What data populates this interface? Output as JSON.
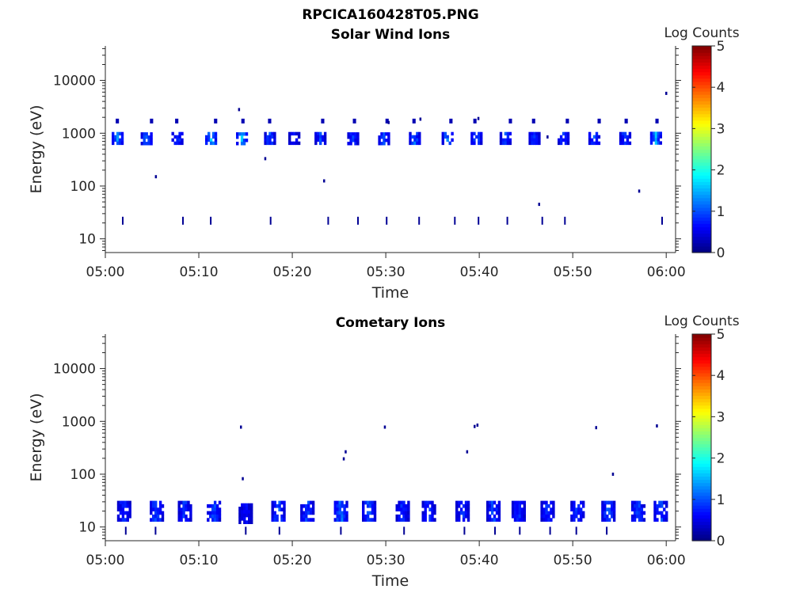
{
  "figure": {
    "title": "RPCICA160428T05.PNG"
  },
  "chart_data": [
    {
      "type": "heatmap",
      "title": "Solar Wind Ions",
      "xlabel": "Time",
      "ylabel": "Energy (eV)",
      "yscale": "log",
      "ylim": [
        5.5,
        45000
      ],
      "xlim": [
        "05:00",
        "06:01"
      ],
      "xticks": [
        "05:00",
        "05:10",
        "05:20",
        "05:30",
        "05:40",
        "05:50",
        "06:00"
      ],
      "yticks": [
        "10",
        "100",
        "1000",
        "10000"
      ],
      "colorbar": {
        "label": "Log Counts",
        "min": 0,
        "max": 5,
        "ticks": [
          "0",
          "1",
          "2",
          "3",
          "4",
          "5"
        ],
        "colormap": "jet"
      },
      "bursts": [
        {
          "t": 1.3,
          "e": 800,
          "z": 1.3
        },
        {
          "t": 4.4,
          "e": 790,
          "z": 1.1
        },
        {
          "t": 7.7,
          "e": 800,
          "z": 0.9
        },
        {
          "t": 11.3,
          "e": 800,
          "z": 1.4
        },
        {
          "t": 14.6,
          "e": 790,
          "z": 1.4
        },
        {
          "t": 17.6,
          "e": 800,
          "z": 0.9
        },
        {
          "t": 20.2,
          "e": 800,
          "z": 0.6
        },
        {
          "t": 23.0,
          "e": 800,
          "z": 0.8
        },
        {
          "t": 26.5,
          "e": 790,
          "z": 0.8
        },
        {
          "t": 29.8,
          "e": 790,
          "z": 0.9
        },
        {
          "t": 33.1,
          "e": 800,
          "z": 1.0
        },
        {
          "t": 36.6,
          "e": 800,
          "z": 1.1
        },
        {
          "t": 39.7,
          "e": 800,
          "z": 1.0
        },
        {
          "t": 42.8,
          "e": 800,
          "z": 0.9
        },
        {
          "t": 45.9,
          "e": 800,
          "z": 0.8
        },
        {
          "t": 49.0,
          "e": 800,
          "z": 0.8
        },
        {
          "t": 52.3,
          "e": 800,
          "z": 1.0
        },
        {
          "t": 55.6,
          "e": 800,
          "z": 0.9
        },
        {
          "t": 58.9,
          "e": 810,
          "z": 1.3
        }
      ]
    },
    {
      "type": "heatmap",
      "title": "Cometary Ions",
      "xlabel": "Time",
      "ylabel": "Energy (eV)",
      "yscale": "log",
      "ylim": [
        5.5,
        45000
      ],
      "xlim": [
        "05:00",
        "06:01"
      ],
      "xticks": [
        "05:00",
        "05:10",
        "05:20",
        "05:30",
        "05:40",
        "05:50",
        "06:00"
      ],
      "yticks": [
        "10",
        "100",
        "1000",
        "10000"
      ],
      "colorbar": {
        "label": "Log Counts",
        "min": 0,
        "max": 5,
        "ticks": [
          "0",
          "1",
          "2",
          "3",
          "4",
          "5"
        ],
        "colormap": "jet"
      },
      "bursts": [
        {
          "t": 2.0,
          "e": 20,
          "z": 0.8
        },
        {
          "t": 5.5,
          "e": 20,
          "z": 1.0
        },
        {
          "t": 8.5,
          "e": 20,
          "z": 0.8
        },
        {
          "t": 11.6,
          "e": 20,
          "z": 0.9
        },
        {
          "t": 15.0,
          "e": 18,
          "z": 0.6
        },
        {
          "t": 18.5,
          "e": 20,
          "z": 1.0
        },
        {
          "t": 21.6,
          "e": 20,
          "z": 0.9
        },
        {
          "t": 25.2,
          "e": 20,
          "z": 1.1
        },
        {
          "t": 28.2,
          "e": 20,
          "z": 0.9
        },
        {
          "t": 31.8,
          "e": 20,
          "z": 0.8
        },
        {
          "t": 34.6,
          "e": 20,
          "z": 0.8
        },
        {
          "t": 38.2,
          "e": 20,
          "z": 0.8
        },
        {
          "t": 41.5,
          "e": 20,
          "z": 0.9
        },
        {
          "t": 44.2,
          "e": 20,
          "z": 0.8
        },
        {
          "t": 47.3,
          "e": 20,
          "z": 0.8
        },
        {
          "t": 50.5,
          "e": 20,
          "z": 0.9
        },
        {
          "t": 53.8,
          "e": 20,
          "z": 1.0
        },
        {
          "t": 57.0,
          "e": 20,
          "z": 0.9
        },
        {
          "t": 59.4,
          "e": 20,
          "z": 0.9
        }
      ]
    }
  ]
}
